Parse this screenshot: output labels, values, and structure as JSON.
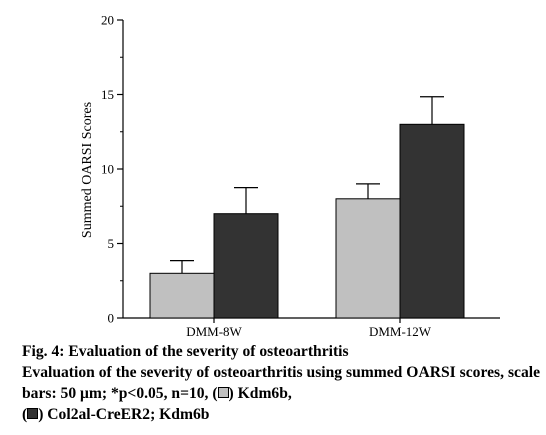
{
  "chart_data": {
    "type": "bar",
    "title": "",
    "xlabel": "",
    "ylabel": "Summed OARSI Scores",
    "ylim": [
      0,
      20
    ],
    "yticks": [
      0,
      5,
      10,
      15,
      20
    ],
    "grid": false,
    "categories": [
      "DMM-8W",
      "DMM-12W"
    ],
    "series": [
      {
        "name": "Kdm6b",
        "color": "#c0c0c0",
        "values": [
          3,
          8
        ],
        "errors": [
          0.85,
          1.0
        ]
      },
      {
        "name": "Col2al-CreER2; Kdm6b",
        "color": "#333333",
        "values": [
          7,
          13
        ],
        "errors": [
          1.75,
          1.85
        ]
      }
    ]
  },
  "caption": {
    "title": "Fig. 4: Evaluation of the severity of osteoarthritis",
    "body_before": "Evaluation of the severity of osteoarthritis using summed OARSI scores, scale bars: 50 μm; *p<0.05, n=10, (",
    "legend_light": "Kdm6b,",
    "legend_dark": "Col2al-CreER2; Kdm6b"
  }
}
